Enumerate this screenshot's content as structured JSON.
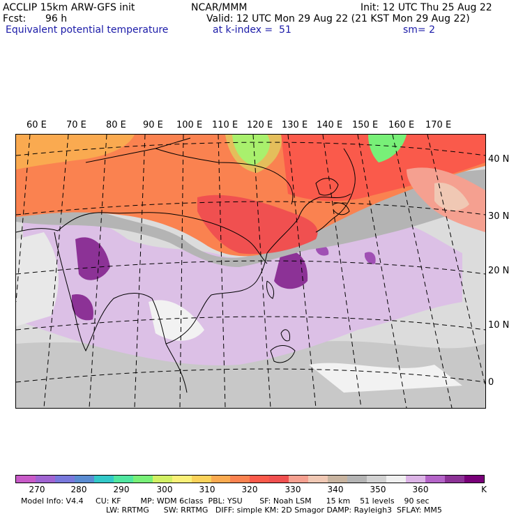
{
  "header": {
    "model": "ACCLIP 15km ARW-GFS init",
    "org": "NCAR/MMM",
    "init": "Init: 12 UTC Thu 25 Aug 22",
    "fcst_label": "Fcst:",
    "fcst_value": "96 h",
    "valid": "Valid: 12 UTC Mon 29 Aug 22 (21 KST Mon 29 Aug 22)",
    "field": "Equivalent potential temperature",
    "level": "at k-index =  51",
    "smooth": "sm= 2"
  },
  "map": {
    "longitude_labels": [
      "60 E",
      "70 E",
      "80 E",
      "90 E",
      "100 E",
      "110 E",
      "120 E",
      "130 E",
      "140 E",
      "150 E",
      "160 E",
      "170 E"
    ],
    "latitude_labels": [
      "40 N",
      "30 N",
      "20 N",
      "10 N",
      "0"
    ]
  },
  "colorbar": {
    "unit": "K",
    "ticks": [
      "270",
      "280",
      "290",
      "300",
      "310",
      "320",
      "330",
      "340",
      "350",
      "360"
    ],
    "colors": [
      "#c85ac8",
      "#a064d2",
      "#7878dc",
      "#5a8cd2",
      "#32c8c8",
      "#50e6a0",
      "#78f078",
      "#d2f064",
      "#faf078",
      "#fad25a",
      "#faaa50",
      "#fa8250",
      "#fa5a4b",
      "#f05050",
      "#f5a090",
      "#f0c8b4",
      "#c8b4a0",
      "#b4b4b4",
      "#d2d2d2",
      "#f0f0f0",
      "#dcb4e6",
      "#b464c8",
      "#8c3296",
      "#780078"
    ]
  },
  "footer": {
    "line1": "Model Info: V4.4     CU: KF        MP: WDM 6class  PBL: YSU       SF: Noah LSM      15 km    51 levels    90 sec",
    "line2": "LW: RRTMG      SW: RRTMG   DIFF: simple KM: 2D Smagor DAMP: Rayleigh3  SFLAY: MM5"
  }
}
